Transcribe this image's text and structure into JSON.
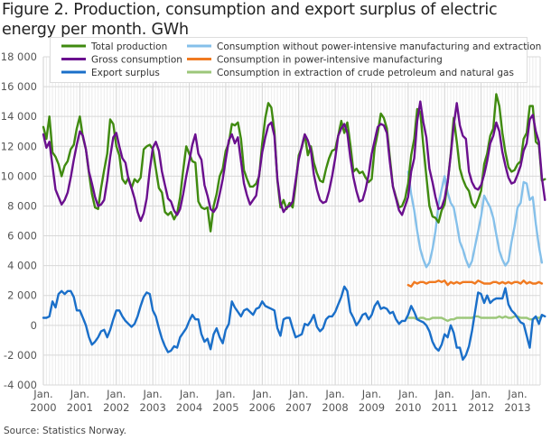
{
  "page": {
    "title": "Figure 2. Production, consumption and export surplus of electric energy per month. GWh",
    "source": "Source: Statistics Norway."
  },
  "chart_data": {
    "type": "line",
    "title": "Figure 2. Production, consumption and export surplus of electric energy per month. GWh",
    "xlabel": "",
    "ylabel": "GWh",
    "ylim": [
      -4000,
      18000
    ],
    "yticks": [
      -4000,
      -2000,
      0,
      2000,
      4000,
      6000,
      8000,
      10000,
      12000,
      14000,
      16000,
      18000
    ],
    "ytick_labels": [
      "-4 000",
      "-2 000",
      "0",
      "2 000",
      "4 000",
      "6 000",
      "8 000",
      "10 000",
      "12 000",
      "14 000",
      "16 000",
      "18 000"
    ],
    "xtick_labels": [
      {
        "month": "Jan.",
        "year": "2000"
      },
      {
        "month": "Jan.",
        "year": "2001"
      },
      {
        "month": "Jan.",
        "year": "2002"
      },
      {
        "month": "Jan.",
        "year": "2003"
      },
      {
        "month": "Jan.",
        "year": "2004"
      },
      {
        "month": "Jan.",
        "year": "2005"
      },
      {
        "month": "Jan.",
        "year": "2006"
      },
      {
        "month": "Jan.",
        "year": "2007"
      },
      {
        "month": "Jan.",
        "year": "2008"
      },
      {
        "month": "Jan.",
        "year": "2009"
      },
      {
        "month": "Jan.",
        "year": "2010"
      },
      {
        "month": "Jan.",
        "year": "2011"
      },
      {
        "month": "Jan.",
        "year": "2012"
      },
      {
        "month": "Jan.",
        "year": "2013"
      }
    ],
    "x_start": "2000-01",
    "x_end": "2013-06",
    "x_unit": "month",
    "grid": true,
    "legend_position": "top",
    "series": [
      {
        "name": "Total production",
        "color": "#3f8a0f",
        "start": "2000-01",
        "values": [
          13300,
          12500,
          14000,
          11600,
          11300,
          10800,
          10000,
          10700,
          11000,
          11800,
          12100,
          13200,
          14000,
          12600,
          11800,
          10200,
          8800,
          7900,
          7800,
          9200,
          10400,
          11500,
          13800,
          13500,
          12000,
          11400,
          9800,
          9500,
          9900,
          9200,
          9800,
          9600,
          9900,
          11800,
          12000,
          12100,
          11800,
          10500,
          9200,
          8900,
          7600,
          7400,
          7600,
          7100,
          7500,
          8600,
          10400,
          12000,
          11500,
          11000,
          10900,
          8300,
          7900,
          7800,
          7900,
          6300,
          8000,
          8800,
          10000,
          10500,
          11700,
          12200,
          13500,
          13400,
          13600,
          12500,
          10400,
          9800,
          9300,
          9300,
          9500,
          10000,
          12200,
          13900,
          14900,
          14600,
          13000,
          9700,
          7900,
          8400,
          7800,
          8200,
          7900,
          9400,
          11400,
          11900,
          12800,
          11400,
          12000,
          10900,
          10200,
          9700,
          9600,
          10500,
          11200,
          11700,
          11800,
          12700,
          13700,
          12900,
          13600,
          12100,
          10300,
          10500,
          10200,
          10300,
          9900,
          9600,
          9800,
          11900,
          12900,
          14200,
          13900,
          13200,
          11200,
          9300,
          8600,
          7900,
          8000,
          8500,
          9500,
          11400,
          12500,
          14500,
          14300,
          12000,
          10000,
          8000,
          7300,
          7200,
          6900,
          7700,
          8100,
          9600,
          11500,
          13900,
          12300,
          10500,
          9800,
          9300,
          9000,
          8200,
          7900,
          8400,
          9000,
          10800,
          11500,
          12700,
          13200,
          15500,
          14700,
          12900,
          11600,
          10600,
          10300,
          10400,
          10800,
          11000,
          12500,
          12900,
          14700,
          14700,
          12300,
          12100,
          9700,
          9800
        ]
      },
      {
        "name": "Gross consumption",
        "color": "#6a0f8e",
        "start": "2000-01",
        "values": [
          12800,
          11900,
          12300,
          10700,
          9100,
          8600,
          8100,
          8400,
          8900,
          9900,
          11100,
          12100,
          13000,
          12700,
          11800,
          10300,
          9500,
          8600,
          8000,
          8100,
          8400,
          9700,
          11300,
          12600,
          12900,
          12000,
          11200,
          10900,
          9800,
          9200,
          8500,
          7600,
          7000,
          7500,
          8500,
          10400,
          11900,
          12300,
          11700,
          10300,
          9400,
          8500,
          8300,
          7700,
          7400,
          7800,
          8800,
          10000,
          11000,
          12100,
          12800,
          11500,
          11100,
          9400,
          8700,
          7800,
          7600,
          7900,
          8800,
          9800,
          11100,
          12400,
          12800,
          12200,
          12600,
          11000,
          9500,
          8700,
          8100,
          8400,
          8700,
          10100,
          11600,
          12600,
          13400,
          13600,
          12700,
          9800,
          8200,
          7600,
          7900,
          8000,
          8300,
          9700,
          11100,
          12000,
          12800,
          12400,
          11700,
          10100,
          9100,
          8400,
          8200,
          8300,
          9000,
          10000,
          11200,
          12700,
          13200,
          13500,
          12900,
          11200,
          9900,
          9000,
          8300,
          8400,
          9100,
          10100,
          11500,
          12400,
          13300,
          13500,
          13400,
          12900,
          10900,
          9300,
          8500,
          7700,
          7400,
          8000,
          8600,
          10300,
          11200,
          13700,
          15000,
          13600,
          12600,
          10500,
          9600,
          8600,
          7800,
          7900,
          8500,
          9600,
          11400,
          13400,
          14900,
          13400,
          12700,
          12500,
          10300,
          9600,
          9200,
          9100,
          9400,
          10100,
          11000,
          12200,
          12700,
          13600,
          13000,
          11600,
          10700,
          9900,
          9500,
          9600,
          10100,
          10700,
          11700,
          12200,
          13800,
          14100,
          13000,
          12300,
          9900,
          8400
        ]
      },
      {
        "name": "Export surplus",
        "color": "#1a6fc9",
        "start": "2000-01",
        "values": [
          500,
          500,
          600,
          1600,
          1200,
          2100,
          2300,
          2100,
          2300,
          2300,
          1900,
          1000,
          1000,
          500,
          0,
          -800,
          -1300,
          -1100,
          -800,
          -400,
          -300,
          -800,
          -300,
          400,
          1000,
          1000,
          600,
          300,
          100,
          -100,
          100,
          600,
          1300,
          1900,
          2200,
          2100,
          1000,
          600,
          -200,
          -900,
          -1400,
          -1800,
          -1700,
          -1400,
          -1500,
          -800,
          -500,
          -200,
          300,
          700,
          400,
          400,
          -600,
          -1100,
          -900,
          -1600,
          -600,
          -200,
          -800,
          -1200,
          -300,
          100,
          1600,
          1200,
          900,
          600,
          1000,
          1100,
          900,
          700,
          1100,
          1200,
          1600,
          1300,
          1200,
          1100,
          1000,
          -200,
          -700,
          400,
          500,
          500,
          -200,
          -800,
          -700,
          -600,
          100,
          0,
          300,
          700,
          -100,
          -400,
          -200,
          400,
          600,
          600,
          900,
          1400,
          1900,
          2600,
          2300,
          900,
          500,
          0,
          300,
          700,
          800,
          400,
          700,
          1300,
          1600,
          1100,
          1200,
          1100,
          800,
          900,
          400,
          100,
          300,
          300,
          700,
          1300,
          900,
          400,
          300,
          200,
          0,
          -400,
          -1100,
          -1500,
          -1700,
          -1300,
          -600,
          -800,
          0,
          -500,
          -1500,
          -1500,
          -2300,
          -2000,
          -1400,
          -400,
          900,
          2200,
          2100,
          1500,
          2000,
          1500,
          1700,
          1800,
          1800,
          1800,
          2500,
          1400,
          1000,
          800,
          500,
          200,
          100,
          -700,
          -1500,
          400,
          600,
          100,
          700,
          600
        ]
      },
      {
        "name": "Consumption without power-intensive manufacturing and extraction",
        "color": "#85c0ea",
        "start": "2010-01",
        "values": [
          10300,
          8800,
          7700,
          6300,
          5100,
          4400,
          3900,
          4200,
          5100,
          6300,
          8100,
          9100,
          10000,
          8900,
          8200,
          7900,
          6800,
          5600,
          5100,
          4400,
          3900,
          4300,
          5300,
          6300,
          7300,
          8700,
          8300,
          7900,
          7200,
          6100,
          5000,
          4400,
          4000,
          4300,
          5600,
          6600,
          7900,
          8200,
          9600,
          9500,
          8400,
          8600,
          6800,
          5300,
          4200
        ]
      },
      {
        "name": "Consumption in power-intensive manufacturing",
        "color": "#f07a21",
        "start": "2010-01",
        "values": [
          2700,
          2600,
          2900,
          2800,
          2900,
          2900,
          2800,
          2900,
          2900,
          2900,
          3000,
          2900,
          3000,
          2700,
          2900,
          2800,
          2900,
          2800,
          2900,
          2900,
          2900,
          2900,
          2800,
          3000,
          2900,
          2800,
          2800,
          2800,
          2900,
          2900,
          2800,
          2900,
          2800,
          2900,
          2800,
          2900,
          2900,
          2800,
          3000,
          2800,
          2900,
          2800,
          2800,
          2900,
          2800
        ]
      },
      {
        "name": "Consumption in extraction of crude petroleum and natural gas",
        "color": "#9cc77a",
        "start": "2010-01",
        "values": [
          500,
          500,
          500,
          400,
          500,
          500,
          400,
          400,
          500,
          500,
          500,
          500,
          400,
          300,
          400,
          400,
          500,
          500,
          500,
          500,
          500,
          500,
          600,
          600,
          500,
          500,
          500,
          500,
          500,
          500,
          600,
          500,
          600,
          500,
          500,
          600,
          600,
          500,
          500,
          500,
          400,
          400,
          500,
          500,
          600
        ]
      }
    ]
  }
}
